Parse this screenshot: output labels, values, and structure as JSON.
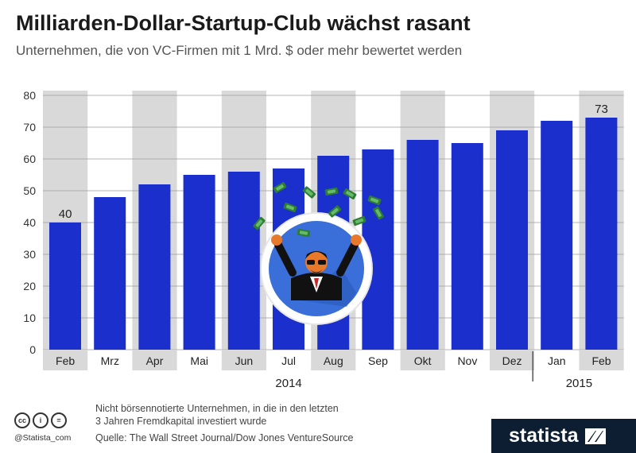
{
  "title": "Milliarden-Dollar-Startup-Club wächst rasant",
  "subtitle": "Unternehmen, die von VC-Firmen mit 1 Mrd. $ oder mehr bewertet werden",
  "chart_data": {
    "type": "bar",
    "categories": [
      "Feb",
      "Mrz",
      "Apr",
      "Mai",
      "Jun",
      "Jul",
      "Aug",
      "Sep",
      "Okt",
      "Nov",
      "Dez",
      "Jan",
      "Feb"
    ],
    "values": [
      40,
      48,
      52,
      55,
      56,
      57,
      61,
      63,
      66,
      65,
      69,
      72,
      73
    ],
    "labeled_values": {
      "0": "40",
      "12": "73"
    },
    "year_labels": [
      {
        "label": "2014",
        "from": 0,
        "to": 10
      },
      {
        "label": "2015",
        "from": 11,
        "to": 12
      }
    ],
    "yticks": [
      "0",
      "10",
      "20",
      "30",
      "40",
      "50",
      "60",
      "70",
      "80"
    ],
    "ylim": [
      0,
      80
    ],
    "bar_color": "#1b2fcc",
    "stripe_color": "#d9d9d9",
    "illustration": "businessman-throwing-money-icon"
  },
  "footer": {
    "note_line1": "Nicht börsennotierte Unternehmen, in die in den letzten",
    "note_line2": "3 Jahren Fremdkapital investiert wurde",
    "source": "Quelle: The Wall Street Journal/Dow Jones VentureSource",
    "handle": "@Statista_com",
    "cc_icons": [
      "cc",
      "i",
      "="
    ],
    "brand": "statista"
  }
}
